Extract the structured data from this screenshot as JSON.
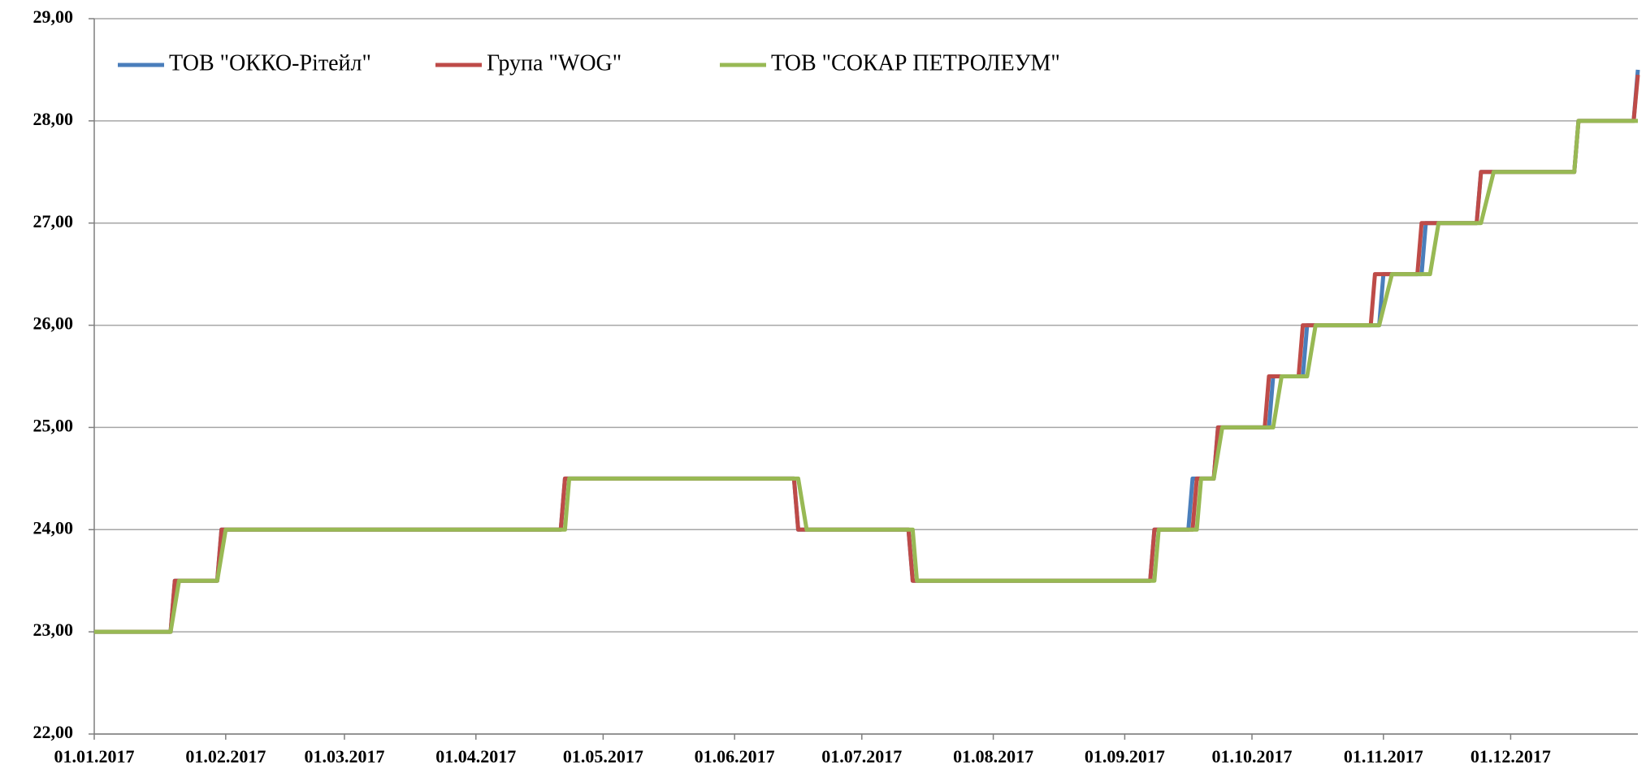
{
  "chart_data": {
    "type": "line",
    "xlim": [
      "01.01.2017",
      "31.12.2017"
    ],
    "xticks": [
      "01.01.2017",
      "01.02.2017",
      "01.03.2017",
      "01.04.2017",
      "01.05.2017",
      "01.06.2017",
      "01.07.2017",
      "01.08.2017",
      "01.09.2017",
      "01.10.2017",
      "01.11.2017",
      "01.12.2017"
    ],
    "ylim": [
      22,
      29
    ],
    "yticks": [
      {
        "value": 22,
        "label": "22,00"
      },
      {
        "value": 23,
        "label": "23,00"
      },
      {
        "value": 24,
        "label": "24,00"
      },
      {
        "value": 25,
        "label": "25,00"
      },
      {
        "value": 26,
        "label": "26,00"
      },
      {
        "value": 27,
        "label": "27,00"
      },
      {
        "value": 28,
        "label": "28,00"
      },
      {
        "value": 29,
        "label": "29,00"
      }
    ],
    "grid": true,
    "legend": "upper left",
    "series": [
      {
        "name": "ТОВ \"ОККО-Рітейл\"",
        "color": "#4a7ebb",
        "x": [
          "01.01.2017",
          "19.01.2017",
          "20.01.2017",
          "30.01.2017",
          "31.01.2017",
          "21.04.2017",
          "22.04.2017",
          "15.06.2017",
          "16.06.2017",
          "12.07.2017",
          "13.07.2017",
          "07.09.2017",
          "08.09.2017",
          "16.09.2017",
          "17.09.2017",
          "22.09.2017",
          "23.09.2017",
          "05.10.2017",
          "06.10.2017",
          "13.10.2017",
          "14.10.2017",
          "31.10.2017",
          "01.11.2017",
          "10.11.2017",
          "11.11.2017",
          "23.11.2017",
          "24.11.2017",
          "16.12.2017",
          "17.12.2017",
          "30.12.2017",
          "31.12.2017"
        ],
        "values": [
          23,
          23,
          23.5,
          23.5,
          24,
          24,
          24.5,
          24.5,
          24,
          24,
          23.5,
          23.5,
          24,
          24,
          24.5,
          24.5,
          25,
          25,
          25.5,
          25.5,
          26,
          26,
          26.5,
          26.5,
          27,
          27,
          27.5,
          27.5,
          28,
          28,
          28.5
        ]
      },
      {
        "name": "Група \"WOG\"",
        "color": "#be4b48",
        "x": [
          "01.01.2017",
          "19.01.2017",
          "20.01.2017",
          "30.01.2017",
          "31.01.2017",
          "21.04.2017",
          "22.04.2017",
          "15.06.2017",
          "16.06.2017",
          "12.07.2017",
          "13.07.2017",
          "07.09.2017",
          "08.09.2017",
          "17.09.2017",
          "18.09.2017",
          "22.09.2017",
          "23.09.2017",
          "04.10.2017",
          "05.10.2017",
          "12.10.2017",
          "13.10.2017",
          "29.10.2017",
          "30.10.2017",
          "09.11.2017",
          "10.11.2017",
          "23.11.2017",
          "24.11.2017",
          "16.12.2017",
          "17.12.2017",
          "30.12.2017",
          "31.12.2017"
        ],
        "values": [
          23,
          23,
          23.5,
          23.5,
          24,
          24,
          24.5,
          24.5,
          24,
          24,
          23.5,
          23.5,
          24,
          24,
          24.5,
          24.5,
          25,
          25,
          25.5,
          25.5,
          26,
          26,
          26.5,
          26.5,
          27,
          27,
          27.5,
          27.5,
          28,
          28,
          28.45
        ]
      },
      {
        "name": "ТОВ \"СОКАР ПЕТРОЛЕУМ\"",
        "color": "#98b954",
        "x": [
          "01.01.2017",
          "19.01.2017",
          "21.01.2017",
          "30.01.2017",
          "01.02.2017",
          "22.04.2017",
          "23.04.2017",
          "16.06.2017",
          "18.06.2017",
          "13.07.2017",
          "14.07.2017",
          "08.09.2017",
          "09.09.2017",
          "18.09.2017",
          "19.09.2017",
          "22.09.2017",
          "24.09.2017",
          "06.10.2017",
          "08.10.2017",
          "14.10.2017",
          "16.10.2017",
          "31.10.2017",
          "03.11.2017",
          "12.11.2017",
          "14.11.2017",
          "24.11.2017",
          "27.11.2017",
          "16.12.2017",
          "17.12.2017",
          "31.12.2017"
        ],
        "values": [
          23,
          23,
          23.5,
          23.5,
          24,
          24,
          24.5,
          24.5,
          24,
          24,
          23.5,
          23.5,
          24,
          24,
          24.5,
          24.5,
          25,
          25,
          25.5,
          25.5,
          26,
          26,
          26.5,
          26.5,
          27,
          27,
          27.5,
          27.5,
          28,
          28
        ]
      }
    ]
  }
}
